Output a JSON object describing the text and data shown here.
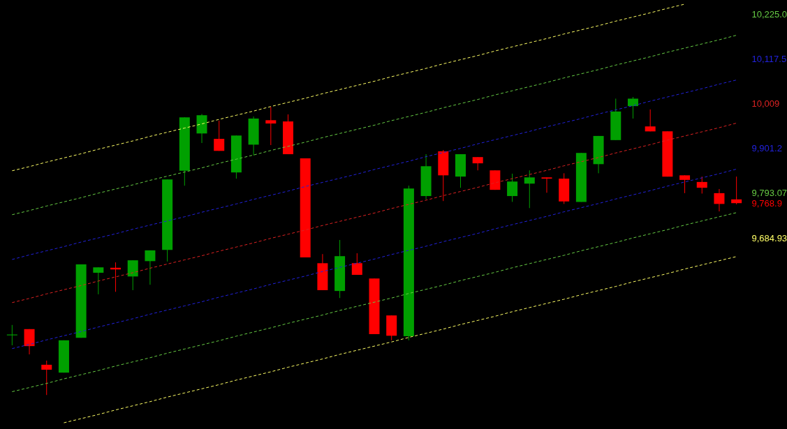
{
  "chart_data": {
    "type": "candlestick",
    "categories": [
      null,
      null,
      null,
      null,
      null,
      null,
      null,
      null,
      null,
      null,
      null,
      null,
      null,
      null,
      null,
      null,
      null,
      null,
      null,
      null,
      null,
      null,
      null,
      null,
      null,
      null,
      null,
      null,
      null,
      null,
      null,
      null,
      null,
      null,
      null,
      null,
      null,
      null,
      null,
      null,
      null,
      null,
      null
    ],
    "ohlc": [
      [
        9450,
        9475,
        9426,
        9452
      ],
      [
        9465,
        9465,
        9404,
        9424
      ],
      [
        9379,
        9389,
        9306,
        9367
      ],
      [
        9360,
        9438,
        9360,
        9438
      ],
      [
        9444,
        9621,
        9444,
        9621
      ],
      [
        9601,
        9614,
        9549,
        9614
      ],
      [
        9613,
        9626,
        9555,
        9609
      ],
      [
        9592,
        9631,
        9559,
        9631
      ],
      [
        9629,
        9655,
        9572,
        9655
      ],
      [
        9656,
        9826,
        9628,
        9826
      ],
      [
        9847,
        9976,
        9811,
        9976
      ],
      [
        9937,
        9984,
        9914,
        9981
      ],
      [
        9924,
        9968,
        9895,
        9895
      ],
      [
        9843,
        9932,
        9828,
        9932
      ],
      [
        9910,
        9978,
        9884,
        9973
      ],
      [
        9969,
        10001,
        9909,
        9961
      ],
      [
        9966,
        9983,
        9887,
        9887
      ],
      [
        9877,
        9877,
        9638,
        9638
      ],
      [
        9624,
        9646,
        9559,
        9559
      ],
      [
        9557,
        9680,
        9540,
        9641
      ],
      [
        9624,
        9648,
        9596,
        9596
      ],
      [
        9587,
        9587,
        9453,
        9453
      ],
      [
        9498,
        9498,
        9438,
        9449
      ],
      [
        9448,
        9811,
        9438,
        9804
      ],
      [
        9786,
        9887,
        9778,
        9858
      ],
      [
        9894,
        9897,
        9774,
        9836
      ],
      [
        9833,
        9887,
        9806,
        9887
      ],
      [
        9880,
        9880,
        9848,
        9865
      ],
      [
        9848,
        9848,
        9801,
        9801
      ],
      [
        9786,
        9840,
        9772,
        9821
      ],
      [
        9816,
        9848,
        9757,
        9831
      ],
      [
        9831,
        9831,
        9794,
        9828
      ],
      [
        9828,
        9841,
        9767,
        9773
      ],
      [
        9772,
        9890,
        9772,
        9890
      ],
      [
        9863,
        9931,
        9841,
        9931
      ],
      [
        9921,
        10021,
        9921,
        9990
      ],
      [
        10003,
        10025,
        9973,
        10021
      ],
      [
        9954,
        9995,
        9942,
        9942
      ],
      [
        9942,
        9942,
        9833,
        9833
      ],
      [
        9836,
        9836,
        9793,
        9825
      ],
      [
        9820,
        9833,
        9792,
        9806
      ],
      [
        9793,
        9803,
        9749,
        9767
      ],
      [
        9778,
        9833,
        9766,
        9768.9
      ]
    ],
    "colors": [
      "#00a000",
      "#ff0000",
      "#ff0000",
      "#00a000",
      "#00a000",
      "#00a000",
      "#ff0000",
      "#00a000",
      "#00a000",
      "#00a000",
      "#00a000",
      "#00a000",
      "#ff0000",
      "#00a000",
      "#00a000",
      "#ff0000",
      "#ff0000",
      "#ff0000",
      "#ff0000",
      "#00a000",
      "#ff0000",
      "#ff0000",
      "#ff0000",
      "#00a000",
      "#00a000",
      "#ff0000",
      "#00a000",
      "#ff0000",
      "#ff0000",
      "#00a000",
      "#00a000",
      "#ff0000",
      "#ff0000",
      "#00a000",
      "#00a000",
      "#00a000",
      "#00a000",
      "#ff0000",
      "#ff0000",
      "#ff0000",
      "#ff0000",
      "#ff0000",
      "#ff0000"
    ],
    "series": [
      {
        "type": "line",
        "color": "#ffff66",
        "line_style": "dashed",
        "values": [
          9847,
          9857,
          9868,
          9878,
          9888,
          9899,
          9909,
          9919,
          9930,
          9940,
          9950,
          9960,
          9971,
          9981,
          9991,
          10002,
          10012,
          10022,
          10033,
          10043,
          10053,
          10063,
          10074,
          10084,
          10094,
          10105,
          10115,
          10125,
          10136,
          10146,
          10156,
          10166,
          10177,
          10187,
          10197,
          10208,
          10218,
          10228,
          10239,
          10249,
          null,
          null,
          null
        ]
      },
      {
        "type": "line",
        "color": "#66cc44",
        "line_style": "dashed",
        "values": [
          9741,
          9751,
          9762,
          9772,
          9782,
          9793,
          9803,
          9813,
          9824,
          9834,
          9844,
          9854,
          9865,
          9875,
          9885,
          9896,
          9906,
          9916,
          9927,
          9937,
          9947,
          9957,
          9968,
          9978,
          9988,
          9999,
          10009,
          10019,
          10030,
          10040,
          10050,
          10060,
          10071,
          10081,
          10091,
          10102,
          10112,
          10122,
          10133,
          10143,
          10153,
          10163,
          10174
        ]
      },
      {
        "type": "line",
        "color": "#2222dd",
        "line_style": "dashed",
        "values": [
          9633,
          9644,
          9654,
          9664,
          9675,
          9685,
          9695,
          9706,
          9716,
          9726,
          9736,
          9747,
          9757,
          9767,
          9778,
          9788,
          9798,
          9809,
          9819,
          9829,
          9839,
          9850,
          9860,
          9870,
          9881,
          9891,
          9901,
          9912,
          9922,
          9932,
          9942,
          9953,
          9963,
          9973,
          9984,
          9994,
          10004,
          10015,
          10025,
          10035,
          10045,
          10056,
          10066
        ]
      },
      {
        "type": "line",
        "color": "#dd2222",
        "line_style": "dashed",
        "values": [
          9529,
          9539,
          9550,
          9560,
          9570,
          9581,
          9591,
          9601,
          9612,
          9622,
          9632,
          9642,
          9653,
          9663,
          9673,
          9684,
          9694,
          9704,
          9715,
          9725,
          9735,
          9745,
          9756,
          9766,
          9776,
          9787,
          9797,
          9807,
          9818,
          9828,
          9838,
          9848,
          9859,
          9869,
          9879,
          9890,
          9900,
          9910,
          9921,
          9931,
          9941,
          9951,
          9962
        ]
      },
      {
        "type": "line",
        "color": "#2222dd",
        "line_style": "dashed",
        "values": [
          9418,
          9428,
          9439,
          9449,
          9459,
          9470,
          9480,
          9490,
          9501,
          9511,
          9521,
          9531,
          9542,
          9552,
          9562,
          9573,
          9583,
          9593,
          9604,
          9614,
          9624,
          9634,
          9645,
          9655,
          9665,
          9676,
          9686,
          9696,
          9707,
          9717,
          9727,
          9737,
          9748,
          9758,
          9768,
          9779,
          9789,
          9799,
          9810,
          9820,
          9830,
          9840,
          9851
        ]
      },
      {
        "type": "line",
        "color": "#66cc44",
        "line_style": "dashed",
        "values": [
          9314,
          9324,
          9334,
          9345,
          9355,
          9365,
          9376,
          9386,
          9396,
          9407,
          9417,
          9427,
          9437,
          9448,
          9458,
          9468,
          9479,
          9489,
          9499,
          9510,
          9520,
          9530,
          9540,
          9551,
          9561,
          9571,
          9582,
          9592,
          9602,
          9613,
          9623,
          9633,
          9643,
          9654,
          9664,
          9674,
          9685,
          9695,
          9705,
          9716,
          9726,
          9736,
          9746
        ]
      },
      {
        "type": "line",
        "color": "#ffff66",
        "line_style": "dashed",
        "values": [
          null,
          null,
          null,
          9239,
          9249,
          9259,
          9270,
          9280,
          9290,
          9301,
          9311,
          9321,
          9331,
          9342,
          9352,
          9362,
          9373,
          9383,
          9393,
          9404,
          9414,
          9424,
          9434,
          9445,
          9455,
          9465,
          9476,
          9486,
          9496,
          9507,
          9517,
          9527,
          9537,
          9548,
          9558,
          9568,
          9579,
          9589,
          9599,
          9610,
          9620,
          9630,
          9640
        ]
      }
    ],
    "ylim": [
      9224,
      10259
    ],
    "yticks": [
      {
        "value": 10225.0,
        "label": "10,225.0"
      },
      {
        "value": 10117.5,
        "label": "10,117.5"
      },
      {
        "value": 10009,
        "label": "10,009"
      },
      {
        "value": 9901.2,
        "label": "9,901.2"
      },
      {
        "value": 9793.07,
        "label": "9,793.07"
      },
      {
        "value": 9768.9,
        "label": "9,768.9"
      },
      {
        "value": 9684.93,
        "label": "9,684.93"
      }
    ],
    "tick_labels": "y",
    "grid": false
  }
}
